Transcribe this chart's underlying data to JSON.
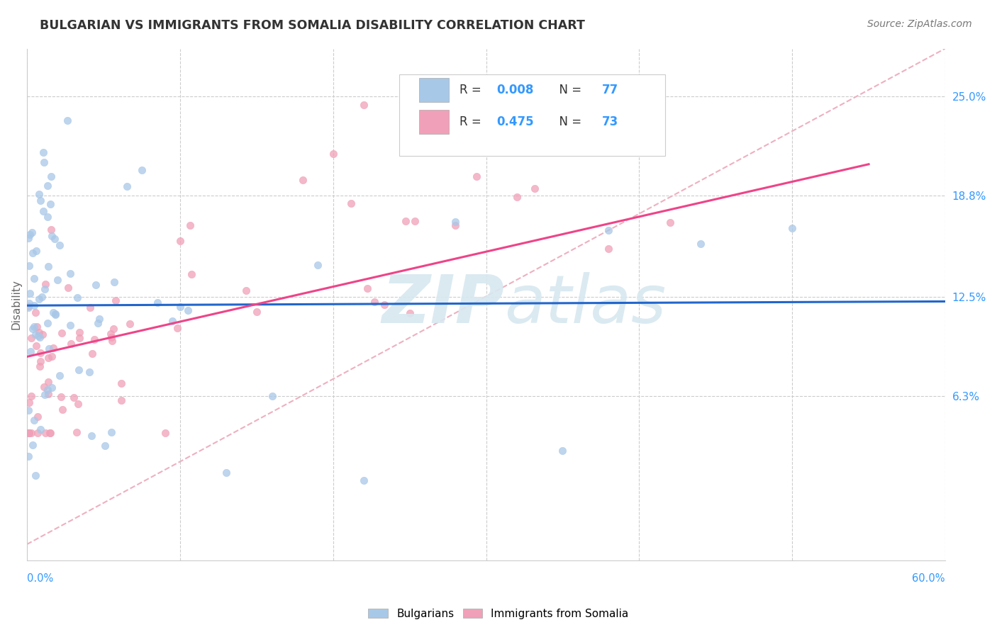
{
  "title": "BULGARIAN VS IMMIGRANTS FROM SOMALIA DISABILITY CORRELATION CHART",
  "source": "Source: ZipAtlas.com",
  "ylabel": "Disability",
  "legend_labels": [
    "Bulgarians",
    "Immigrants from Somalia"
  ],
  "blue_color": "#A8C8E8",
  "pink_color": "#F0A0B8",
  "blue_line_color": "#2266CC",
  "pink_line_color": "#EE4488",
  "diag_color": "#EEB0C0",
  "right_yticks": [
    0.063,
    0.125,
    0.188,
    0.25
  ],
  "right_yticklabels": [
    "6.3%",
    "12.5%",
    "18.8%",
    "25.0%"
  ],
  "watermark_top": "ZIP",
  "watermark_bot": "atlas",
  "background_color": "#FFFFFF",
  "xlim": [
    0.0,
    0.6
  ],
  "ylim": [
    -0.04,
    0.28
  ],
  "grid_color": "#CCCCCC",
  "legend_R1": "0.008",
  "legend_N1": "77",
  "legend_R2": "0.475",
  "legend_N2": "73"
}
